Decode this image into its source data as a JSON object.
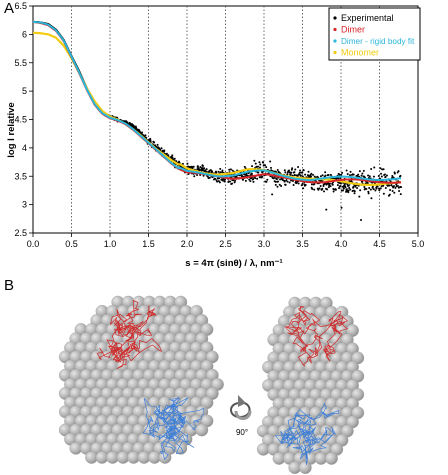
{
  "panels": {
    "a_label": "A",
    "b_label": "B"
  },
  "structure_panel": {
    "rotation_label": "90°",
    "colors": {
      "shell": "#b9b9b9",
      "chain_red": "#cf2a2a",
      "chain_blue": "#3f7fd6"
    }
  },
  "chart_data": {
    "type": "scatter",
    "xlabel": "s = 4π (sinθ) / λ, nm⁻¹",
    "ylabel": "log I relative",
    "xlim": [
      0.0,
      5.0
    ],
    "ylim": [
      2.5,
      6.5
    ],
    "x_ticks": [
      "0.0",
      "0.5",
      "1.0",
      "1.5",
      "2.0",
      "2.5",
      "3.0",
      "3.5",
      "4.0",
      "4.5",
      "5.0"
    ],
    "y_ticks": [
      "2.5",
      "3",
      "3.5",
      "4",
      "4.5",
      "5",
      "5.5",
      "6",
      "6.5"
    ],
    "vertical_dotted_lines_at": [
      0.5,
      1.0,
      1.5,
      2.0,
      2.5,
      3.0,
      3.5,
      4.0,
      4.5
    ],
    "legend_placement": "top-right",
    "series": [
      {
        "name": "Experimental",
        "kind": "points",
        "color": "#000000",
        "x": [
          0.02,
          0.1,
          0.2,
          0.3,
          0.4,
          0.5,
          0.6,
          0.7,
          0.8,
          0.9,
          1.0,
          1.1,
          1.2,
          1.3,
          1.4,
          1.5,
          1.6,
          1.7,
          1.8,
          1.9,
          2.0,
          2.2,
          2.4,
          2.6,
          2.8,
          3.0,
          3.2,
          3.4,
          3.6,
          3.8,
          4.0,
          4.2,
          4.4,
          4.6,
          4.78
        ],
        "y": [
          6.22,
          6.21,
          6.18,
          6.08,
          5.9,
          5.62,
          5.35,
          5.05,
          4.78,
          4.62,
          4.55,
          4.5,
          4.45,
          4.38,
          4.25,
          4.12,
          4.0,
          3.9,
          3.78,
          3.68,
          3.6,
          3.6,
          3.5,
          3.48,
          3.55,
          3.6,
          3.48,
          3.5,
          3.42,
          3.4,
          3.4,
          3.38,
          3.4,
          3.4,
          3.38
        ],
        "scatter_spread": [
          0.0,
          0.0,
          0.0,
          0.0,
          0.0,
          0.0,
          0.0,
          0.0,
          0.02,
          0.04,
          0.05,
          0.06,
          0.07,
          0.08,
          0.1,
          0.12,
          0.14,
          0.15,
          0.17,
          0.18,
          0.2,
          0.22,
          0.25,
          0.27,
          0.3,
          0.32,
          0.34,
          0.36,
          0.38,
          0.4,
          0.42,
          0.44,
          0.46,
          0.48,
          0.5
        ]
      },
      {
        "name": "Dimer",
        "kind": "line",
        "color": "#d6262b",
        "x": [
          0.0,
          0.1,
          0.2,
          0.3,
          0.4,
          0.5,
          0.6,
          0.7,
          0.8,
          0.9,
          1.0,
          1.1,
          1.2,
          1.3,
          1.4,
          1.5,
          1.6,
          1.7,
          1.8,
          1.9,
          2.0,
          2.2,
          2.4,
          2.6,
          2.8,
          3.0,
          3.2,
          3.4,
          3.6,
          3.8,
          4.0,
          4.2,
          4.4,
          4.6,
          4.78
        ],
        "y": [
          6.22,
          6.2,
          6.16,
          6.06,
          5.88,
          5.6,
          5.32,
          5.02,
          4.76,
          4.6,
          4.52,
          4.48,
          4.42,
          4.32,
          4.2,
          4.08,
          3.96,
          3.84,
          3.72,
          3.62,
          3.55,
          3.52,
          3.5,
          3.48,
          3.5,
          3.52,
          3.47,
          3.44,
          3.42,
          3.41,
          3.42,
          3.42,
          3.41,
          3.41,
          3.41
        ]
      },
      {
        "name": "Dimer - rigid body fit",
        "kind": "line",
        "color": "#2bb5d9",
        "x": [
          0.0,
          0.1,
          0.2,
          0.3,
          0.4,
          0.5,
          0.6,
          0.7,
          0.8,
          0.9,
          1.0,
          1.1,
          1.2,
          1.3,
          1.4,
          1.5,
          1.6,
          1.7,
          1.8,
          1.9,
          2.0,
          2.2,
          2.4,
          2.6,
          2.8,
          3.0,
          3.2,
          3.4,
          3.6,
          3.8,
          4.0,
          4.2,
          4.4,
          4.6,
          4.78
        ],
        "y": [
          6.22,
          6.21,
          6.17,
          6.07,
          5.89,
          5.61,
          5.33,
          5.03,
          4.77,
          4.61,
          4.53,
          4.49,
          4.43,
          4.33,
          4.21,
          4.09,
          3.97,
          3.85,
          3.73,
          3.63,
          3.57,
          3.55,
          3.52,
          3.53,
          3.57,
          3.58,
          3.52,
          3.48,
          3.45,
          3.46,
          3.47,
          3.47,
          3.46,
          3.46,
          3.46
        ]
      },
      {
        "name": "Monomer",
        "kind": "line",
        "color": "#f2cc12",
        "x": [
          0.0,
          0.1,
          0.2,
          0.3,
          0.4,
          0.5,
          0.6,
          0.7,
          0.8,
          0.9,
          1.0,
          1.1,
          1.2,
          1.3,
          1.4,
          1.5,
          1.6,
          1.7,
          1.8,
          1.9,
          2.0,
          2.2,
          2.4,
          2.6,
          2.8,
          3.0,
          3.2,
          3.4,
          3.6,
          3.8,
          4.0,
          4.2,
          4.4,
          4.6,
          4.78
        ],
        "y": [
          6.03,
          6.02,
          6.0,
          5.94,
          5.8,
          5.58,
          5.32,
          5.05,
          4.82,
          4.65,
          4.55,
          4.5,
          4.42,
          4.33,
          4.22,
          4.1,
          3.98,
          3.88,
          3.78,
          3.7,
          3.63,
          3.58,
          3.55,
          3.55,
          3.6,
          3.6,
          3.55,
          3.5,
          3.45,
          3.42,
          3.4,
          3.38,
          3.37,
          3.37,
          3.37
        ]
      }
    ]
  }
}
